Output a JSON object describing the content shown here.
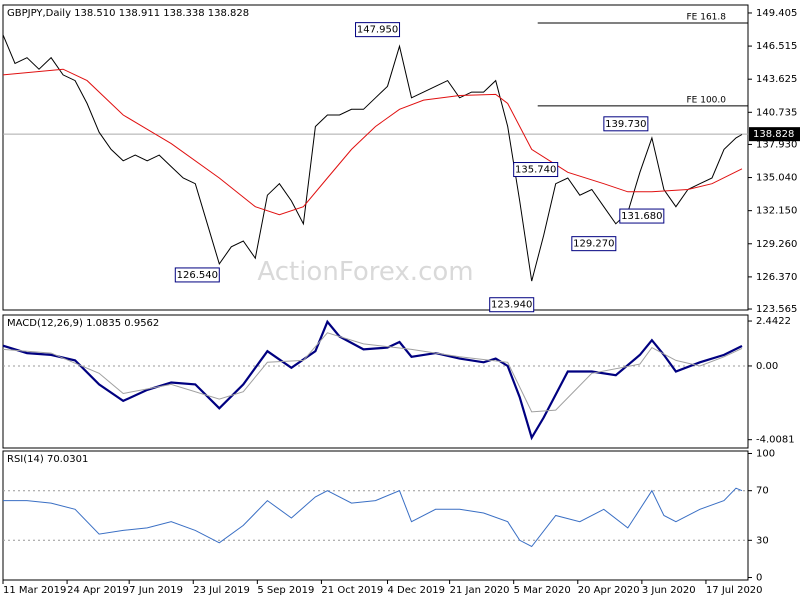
{
  "chart_data": [
    {
      "type": "line",
      "title": "GBPJPY,Daily  138.510 138.911 138.338 138.828",
      "xlim": [
        0,
        372
      ],
      "ylim": [
        123.48,
        150.1
      ],
      "yticks": [
        149.405,
        146.515,
        143.625,
        140.735,
        {
          "value": 137.93,
          "label": "137.930"
        },
        {
          "value": 135.04,
          "label": "135.040"
        },
        {
          "value": 132.15,
          "label": "132.150"
        },
        {
          "value": 129.26,
          "label": "129.260"
        },
        {
          "value": 126.37,
          "label": "126.370"
        },
        123.565
      ],
      "series": [
        {
          "name": "GBPJPY",
          "color": "#000000",
          "x": [
            0,
            6,
            12,
            18,
            24,
            30,
            36,
            42,
            48,
            54,
            60,
            66,
            72,
            78,
            84,
            90,
            96,
            102,
            108,
            114,
            120,
            126,
            132,
            138,
            144,
            150,
            156,
            162,
            168,
            174,
            180,
            186,
            192,
            198,
            204,
            210,
            216,
            222,
            228,
            234,
            240,
            246,
            252,
            258,
            264,
            270,
            276,
            282,
            288,
            294,
            300,
            306,
            312,
            318,
            324,
            330,
            336,
            342,
            348,
            354,
            360,
            366,
            369
          ],
          "values": [
            147.5,
            145,
            145.5,
            144.5,
            145.5,
            144,
            143.5,
            141.5,
            139,
            137.5,
            136.5,
            137,
            136.5,
            137,
            136,
            135,
            134.5,
            131,
            127.5,
            129,
            129.5,
            128,
            133.5,
            134.5,
            133,
            131,
            139.5,
            140.5,
            140.5,
            141,
            141,
            142,
            143,
            146.5,
            142,
            142.5,
            143,
            143.5,
            142,
            142.5,
            142.5,
            143.5,
            139.5,
            133,
            126,
            130,
            134.5,
            135,
            133.5,
            134,
            132.5,
            131,
            132,
            135.5,
            138.5,
            134,
            132.5,
            134,
            134.5,
            135,
            137.5,
            138.5,
            138.8
          ]
        },
        {
          "name": "MA",
          "color": "#e01010",
          "x": [
            0,
            30,
            42,
            60,
            84,
            108,
            126,
            138,
            150,
            162,
            174,
            186,
            198,
            210,
            228,
            246,
            252,
            264,
            282,
            300,
            312,
            324,
            342,
            354,
            369
          ],
          "values": [
            144,
            144.5,
            143.5,
            140.5,
            138,
            135,
            132.5,
            131.8,
            132.5,
            135,
            137.5,
            139.5,
            141,
            141.8,
            142.2,
            142.3,
            141.5,
            137.5,
            135.5,
            134.5,
            133.8,
            133.8,
            134,
            134.5,
            135.8
          ]
        }
      ],
      "current": {
        "value": 138.828,
        "label": "138.828"
      },
      "levels": [
        {
          "label": "FE 161.8",
          "value": 148.53,
          "x": 267
        },
        {
          "label": "FE 100.0",
          "value": 141.3,
          "x": 267
        }
      ],
      "annotations": [
        {
          "text": "147.950",
          "x": 198,
          "y": 147.95,
          "side": "left"
        },
        {
          "text": "126.540",
          "x": 108,
          "y": 126.54,
          "side": "left"
        },
        {
          "text": "123.940",
          "x": 265,
          "y": 123.94,
          "side": "left"
        },
        {
          "text": "135.740",
          "x": 255,
          "y": 135.74,
          "side": "right"
        },
        {
          "text": "139.730",
          "x": 322,
          "y": 139.73,
          "side": "left"
        },
        {
          "text": "129.270",
          "x": 306,
          "y": 129.27,
          "side": "left"
        },
        {
          "text": "131.680",
          "x": 308,
          "y": 131.68,
          "side": "right"
        }
      ],
      "watermark": "ActionForex.com"
    },
    {
      "type": "line",
      "title": "MACD(12,26,9) 1.0835 0.9562",
      "xlim": [
        0,
        372
      ],
      "ylim": [
        -4.46,
        2.77
      ],
      "yticks": [
        2.4422,
        {
          "value": 0,
          "label": "0.00"
        },
        -4.0081
      ],
      "dashed_levels": [
        0
      ],
      "series": [
        {
          "name": "MACD",
          "color": "#000080",
          "width": 2.2,
          "x": [
            0,
            12,
            24,
            36,
            48,
            60,
            72,
            84,
            96,
            108,
            120,
            132,
            144,
            156,
            162,
            168,
            180,
            192,
            198,
            204,
            216,
            228,
            240,
            246,
            252,
            258,
            264,
            270,
            282,
            294,
            306,
            318,
            324,
            330,
            336,
            348,
            360,
            369
          ],
          "values": [
            1.1,
            0.7,
            0.6,
            0.3,
            -1.0,
            -1.9,
            -1.3,
            -0.9,
            -1.0,
            -2.3,
            -1.0,
            0.8,
            -0.1,
            0.8,
            2.4,
            1.6,
            0.9,
            1.0,
            1.3,
            0.5,
            0.7,
            0.4,
            0.2,
            0.4,
            0.0,
            -1.7,
            -3.9,
            -2.8,
            -0.3,
            -0.3,
            -0.5,
            0.6,
            1.4,
            0.6,
            -0.3,
            0.2,
            0.6,
            1.0835
          ]
        },
        {
          "name": "Signal",
          "color": "#a0a0a0",
          "x": [
            0,
            24,
            48,
            60,
            84,
            108,
            120,
            132,
            150,
            162,
            180,
            204,
            228,
            252,
            264,
            276,
            294,
            318,
            324,
            336,
            348,
            360,
            369
          ],
          "values": [
            0.9,
            0.7,
            -0.4,
            -1.5,
            -1.0,
            -1.8,
            -1.4,
            0.2,
            0.3,
            1.8,
            1.2,
            0.9,
            0.5,
            0.2,
            -2.5,
            -2.4,
            -0.4,
            0.1,
            1.0,
            0.3,
            0.0,
            0.5,
            0.9562
          ]
        }
      ]
    },
    {
      "type": "line",
      "title": "RSI(14) 70.0301",
      "xlim": [
        0,
        372
      ],
      "ylim": [
        -2,
        102
      ],
      "yticks": [
        100,
        70,
        30,
        0
      ],
      "dashed_levels": [
        70,
        30
      ],
      "xticks": [
        {
          "value": 0,
          "label": "11 Mar 2019"
        },
        {
          "value": 32,
          "label": "24 Apr 2019"
        },
        {
          "value": 63,
          "label": "7 Jun 2019"
        },
        {
          "value": 95,
          "label": "23 Jul 2019"
        },
        {
          "value": 127,
          "label": "5 Sep 2019"
        },
        {
          "value": 159,
          "label": "21 Oct 2019"
        },
        {
          "value": 192,
          "label": "4 Dec 2019"
        },
        {
          "value": 223,
          "label": "21 Jan 2020"
        },
        {
          "value": 255,
          "label": "5 Mar 2020"
        },
        {
          "value": 287,
          "label": "20 Apr 2020"
        },
        {
          "value": 319,
          "label": "3 Jun 2020"
        },
        {
          "value": 351,
          "label": "17 Jul 2020"
        }
      ],
      "series": [
        {
          "name": "RSI",
          "color": "#3a6fc4",
          "x": [
            0,
            12,
            24,
            36,
            48,
            60,
            72,
            84,
            96,
            108,
            120,
            132,
            144,
            156,
            162,
            174,
            186,
            198,
            204,
            216,
            228,
            240,
            252,
            258,
            264,
            276,
            288,
            300,
            312,
            324,
            330,
            336,
            348,
            360,
            366,
            369
          ],
          "values": [
            62,
            62,
            60,
            55,
            35,
            38,
            40,
            45,
            38,
            28,
            42,
            62,
            48,
            65,
            70,
            60,
            62,
            70,
            45,
            55,
            55,
            52,
            45,
            30,
            25,
            50,
            45,
            55,
            40,
            70,
            50,
            45,
            55,
            62,
            72,
            70.03
          ]
        }
      ]
    }
  ]
}
